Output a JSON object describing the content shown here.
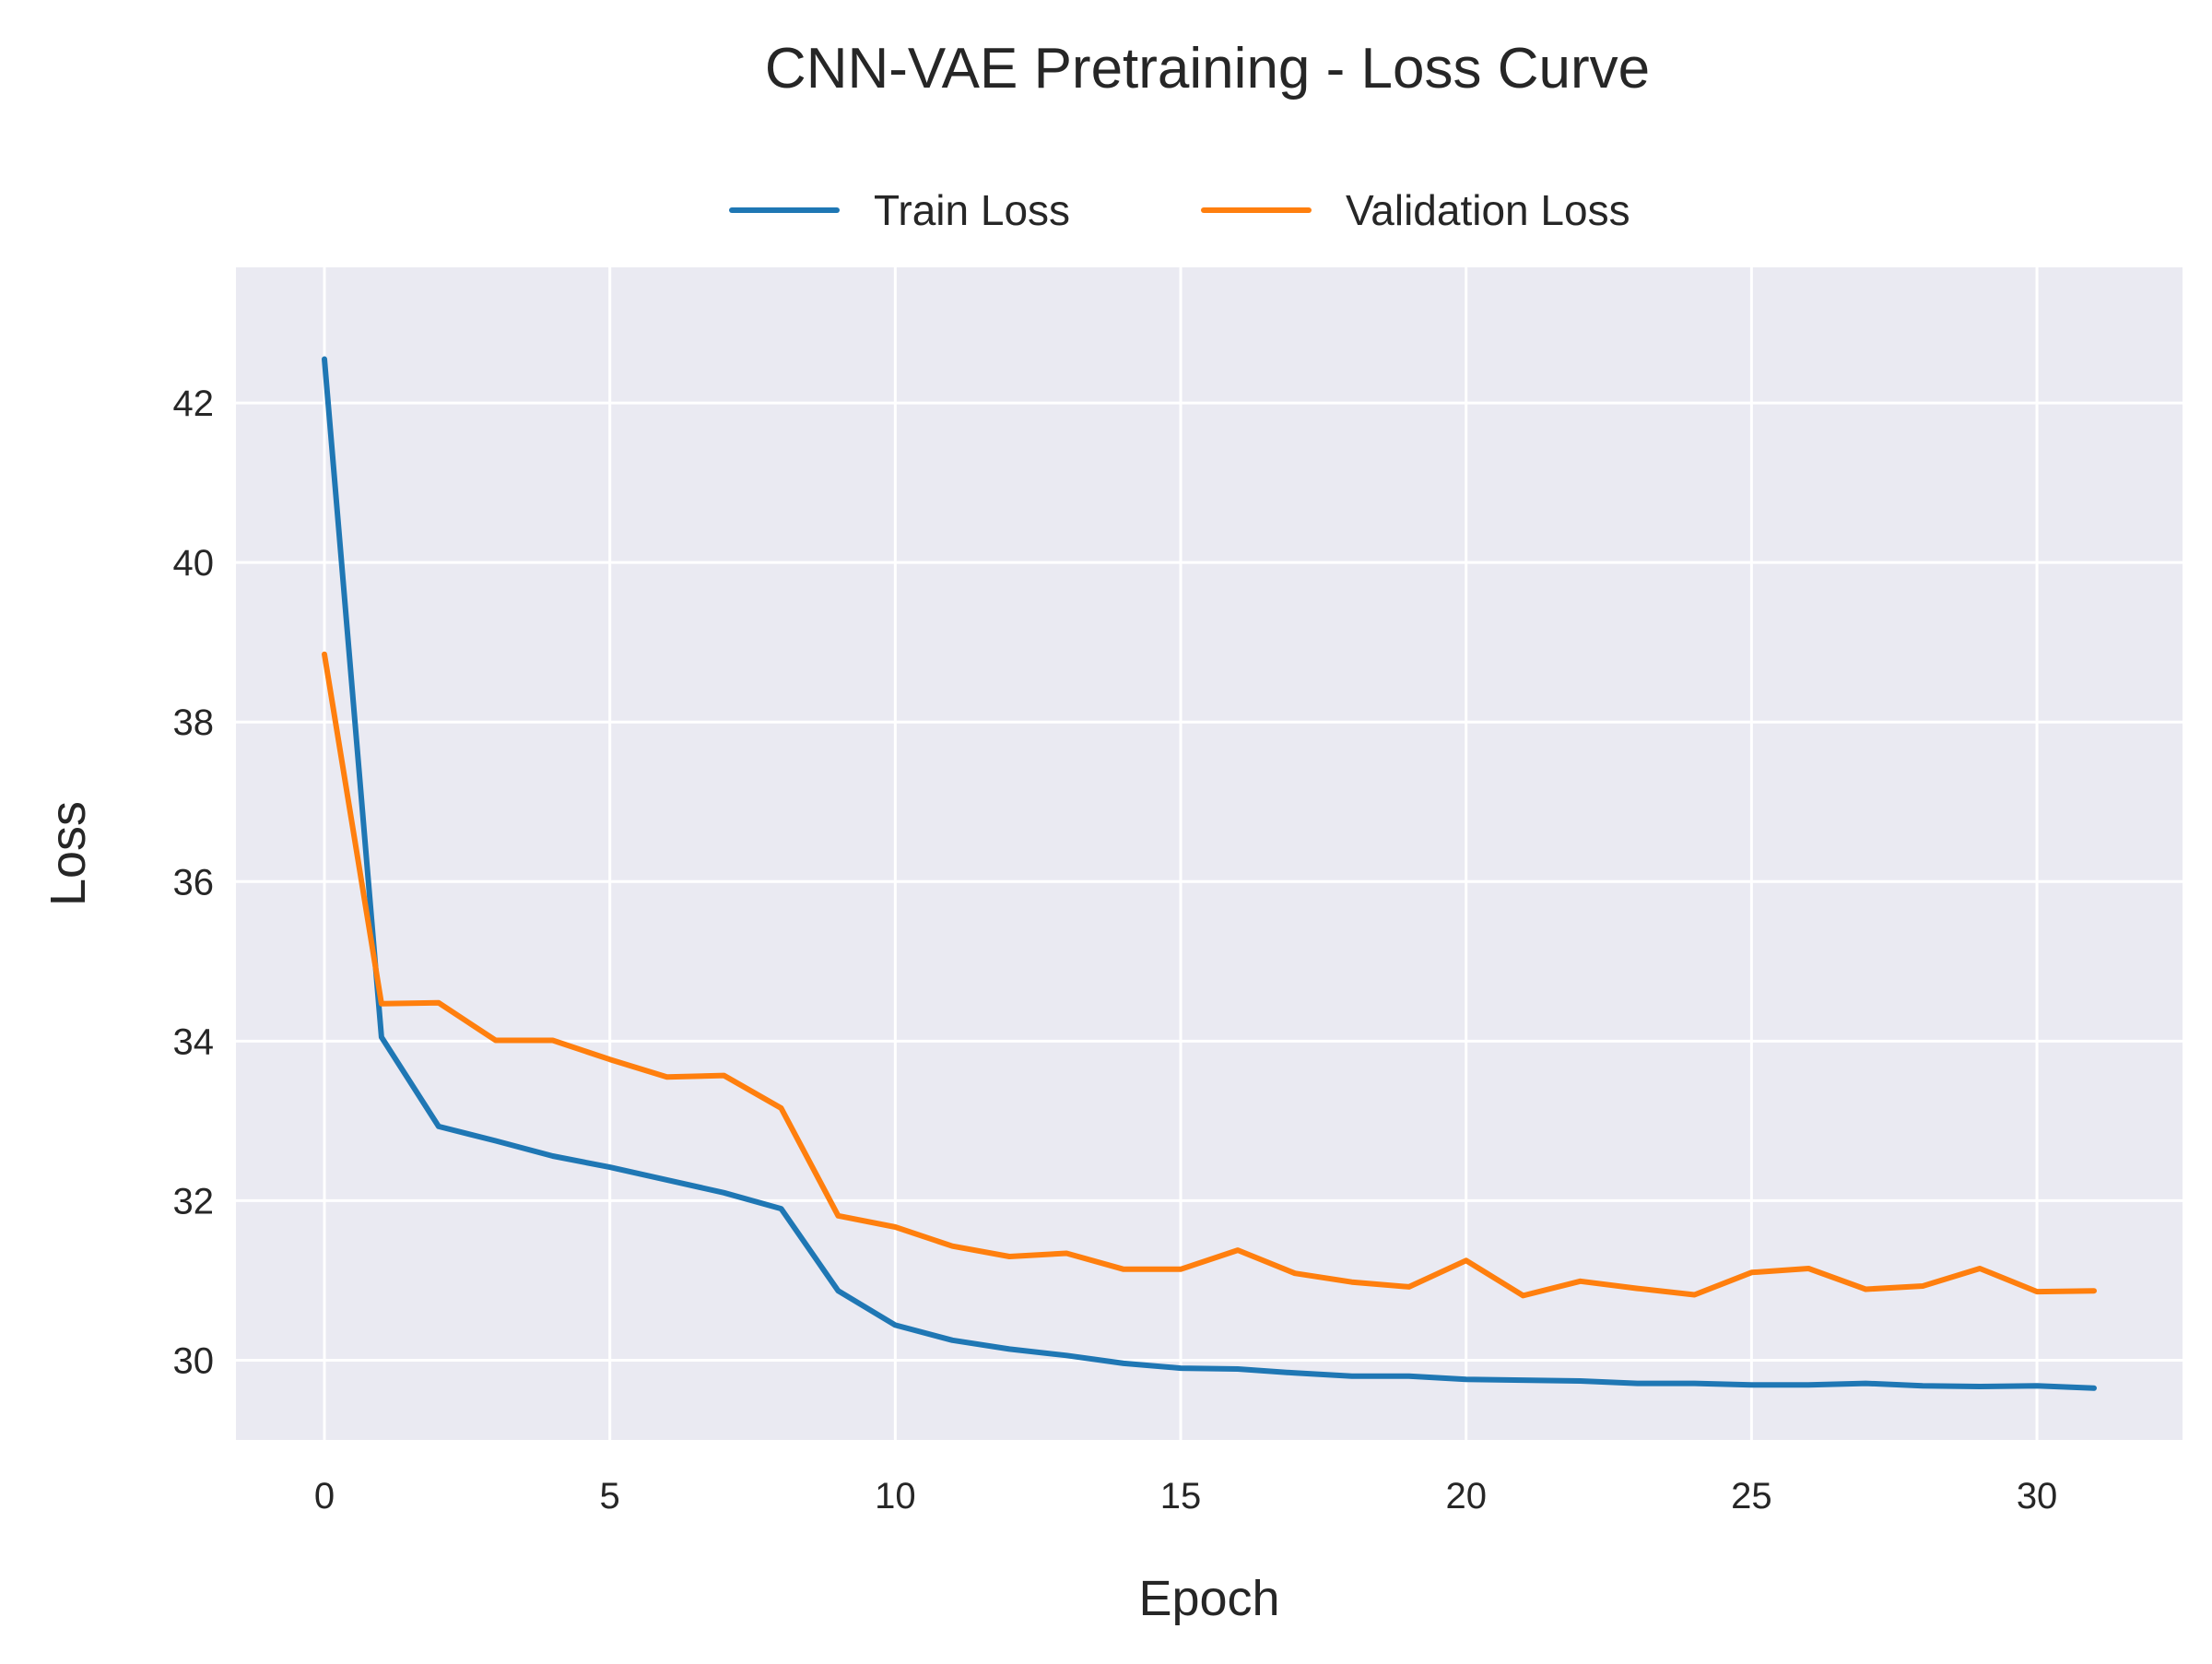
{
  "chart_data": {
    "type": "line",
    "title": "CNN-VAE Pretraining - Loss Curve",
    "xlabel": "Epoch",
    "ylabel": "Loss",
    "xlim": [
      -1.55,
      32.55
    ],
    "ylim": [
      29.0,
      43.7
    ],
    "xticks": [
      "0",
      "5",
      "10",
      "15",
      "20",
      "25",
      "30"
    ],
    "xtick_values": [
      0,
      5,
      10,
      15,
      20,
      25,
      30
    ],
    "yticks": [
      "30",
      "32",
      "34",
      "36",
      "38",
      "40",
      "42"
    ],
    "ytick_values": [
      30,
      32,
      34,
      36,
      38,
      40,
      42
    ],
    "grid": true,
    "legend_position": "top-center",
    "background_color": "#EAEAF2",
    "x": [
      0,
      1,
      2,
      3,
      4,
      5,
      6,
      7,
      8,
      9,
      10,
      11,
      12,
      13,
      14,
      15,
      16,
      17,
      18,
      19,
      20,
      21,
      22,
      23,
      24,
      25,
      26,
      27,
      28,
      29,
      30,
      31
    ],
    "series": [
      {
        "name": "Train Loss",
        "color": "#1F77B4",
        "values": [
          42.55,
          34.05,
          32.93,
          32.75,
          32.56,
          32.42,
          32.26,
          32.1,
          31.9,
          30.87,
          30.44,
          30.25,
          30.14,
          30.06,
          29.96,
          29.9,
          29.89,
          29.84,
          29.8,
          29.8,
          29.76,
          29.75,
          29.74,
          29.71,
          29.71,
          29.69,
          29.69,
          29.71,
          29.68,
          29.67,
          29.68,
          29.65
        ]
      },
      {
        "name": "Validation Loss",
        "color": "#FF7F0E",
        "values": [
          38.85,
          34.47,
          34.48,
          34.01,
          34.01,
          33.77,
          33.55,
          33.57,
          33.16,
          31.81,
          31.67,
          31.43,
          31.3,
          31.34,
          31.14,
          31.14,
          31.38,
          31.09,
          30.98,
          30.92,
          31.25,
          30.81,
          30.99,
          30.9,
          30.82,
          31.1,
          31.15,
          30.89,
          30.93,
          31.15,
          30.86,
          30.87
        ]
      }
    ]
  }
}
